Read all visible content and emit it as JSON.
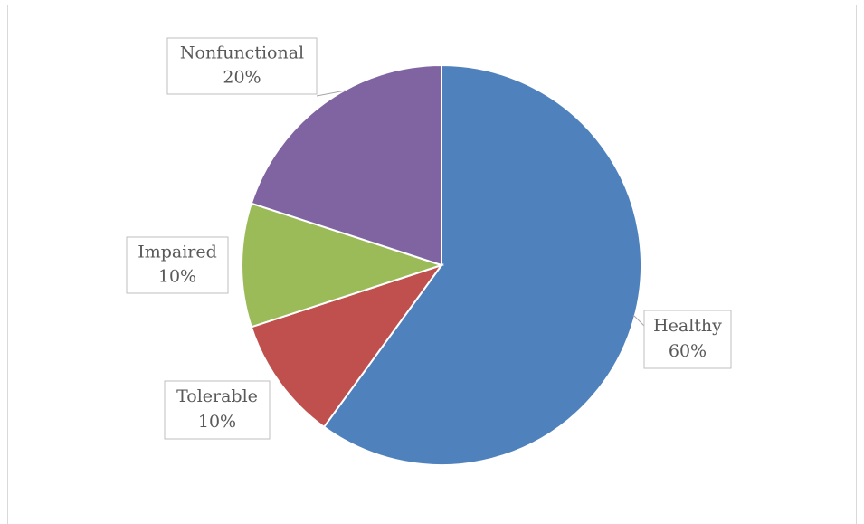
{
  "chart_data": {
    "type": "pie",
    "categories": [
      "Healthy",
      "Tolerable",
      "Impaired",
      "Nonfunctional"
    ],
    "values": [
      60,
      10,
      10,
      20
    ],
    "value_labels": [
      "60%",
      "10%",
      "10%",
      "20%"
    ],
    "colors": [
      "#4f81bd",
      "#c0504d",
      "#9bbb59",
      "#8064a2"
    ]
  }
}
